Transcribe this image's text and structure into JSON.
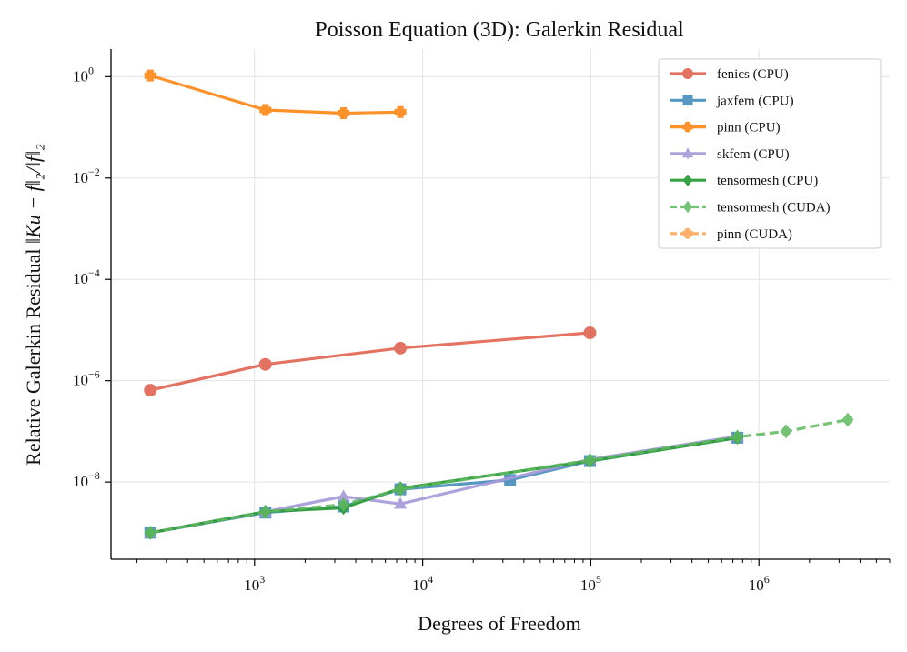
{
  "chart_data": {
    "type": "line",
    "title": "Poisson Equation (3D): Galerkin Residual",
    "xlabel": "Degrees of Freedom",
    "ylabel_text": "Relative Galerkin Residual ",
    "ylabel_math": "‖Ku − f‖₂/‖f‖₂",
    "xscale": "log",
    "yscale": "log",
    "xlim": [
      140,
      6000000
    ],
    "ylim": [
      3e-10,
      3.5
    ],
    "grid": true,
    "legend_position": "top-right",
    "x_ticks": [
      {
        "value": 1000,
        "base": "10",
        "exp": "3"
      },
      {
        "value": 10000,
        "base": "10",
        "exp": "4"
      },
      {
        "value": 100000,
        "base": "10",
        "exp": "5"
      },
      {
        "value": 1000000,
        "base": "10",
        "exp": "6"
      }
    ],
    "y_ticks": [
      {
        "value": 1,
        "base": "10",
        "exp": "0"
      },
      {
        "value": 0.01,
        "base": "10",
        "exp": "−2"
      },
      {
        "value": 0.0001,
        "base": "10",
        "exp": "−4"
      },
      {
        "value": 1e-06,
        "base": "10",
        "exp": "−6"
      },
      {
        "value": 1e-08,
        "base": "10",
        "exp": "−8"
      }
    ],
    "series": [
      {
        "name": "fenics (CPU)",
        "color": "#e05a47",
        "marker": "circle",
        "dashed": false,
        "alpha": 0.85,
        "x": [
          240,
          1160,
          7370,
          98800
        ],
        "y": [
          6.5e-07,
          2.1e-06,
          4.4e-06,
          8.8e-06
        ]
      },
      {
        "name": "jaxfem (CPU)",
        "color": "#3a87b9",
        "marker": "square",
        "dashed": false,
        "alpha": 0.85,
        "x": [
          240,
          1160,
          3380,
          7370,
          33100,
          98800,
          745000
        ],
        "y": [
          1e-09,
          2.5e-09,
          3.3e-09,
          7.2e-09,
          1.1e-08,
          2.6e-08,
          7.5e-08
        ]
      },
      {
        "name": "pinn (CPU)",
        "color": "#ff8c1f",
        "marker": "plus",
        "dashed": false,
        "alpha": 0.95,
        "x": [
          240,
          1160,
          3380,
          7370
        ],
        "y": [
          1.05,
          0.22,
          0.19,
          0.2
        ]
      },
      {
        "name": "skfem (CPU)",
        "color": "#a598d8",
        "marker": "triangle",
        "dashed": false,
        "alpha": 0.9,
        "x": [
          240,
          1160,
          3380,
          7370,
          98800,
          745000
        ],
        "y": [
          1e-09,
          2.6e-09,
          5.2e-09,
          3.7e-09,
          2.8e-08,
          8e-08
        ]
      },
      {
        "name": "tensormesh (CPU)",
        "color": "#2f9e3c",
        "marker": "diamond",
        "dashed": false,
        "alpha": 0.95,
        "x": [
          240,
          1160,
          3380,
          7370,
          98800,
          745000
        ],
        "y": [
          1e-09,
          2.6e-09,
          3.1e-09,
          7.5e-09,
          2.6e-08,
          7.5e-08
        ]
      },
      {
        "name": "tensormesh (CUDA)",
        "color": "#5fb85f",
        "marker": "diamond",
        "dashed": true,
        "alpha": 0.85,
        "x": [
          240,
          1160,
          3380,
          7370,
          98800,
          745000,
          1450000,
          3380000
        ],
        "y": [
          1e-09,
          2.6e-09,
          3.6e-09,
          7.2e-09,
          2.7e-08,
          7.8e-08,
          1e-07,
          1.7e-07
        ]
      },
      {
        "name": "pinn (CUDA)",
        "color": "#ffa24f",
        "marker": "plus",
        "dashed": true,
        "alpha": 0.85,
        "x": [],
        "y": []
      }
    ]
  }
}
